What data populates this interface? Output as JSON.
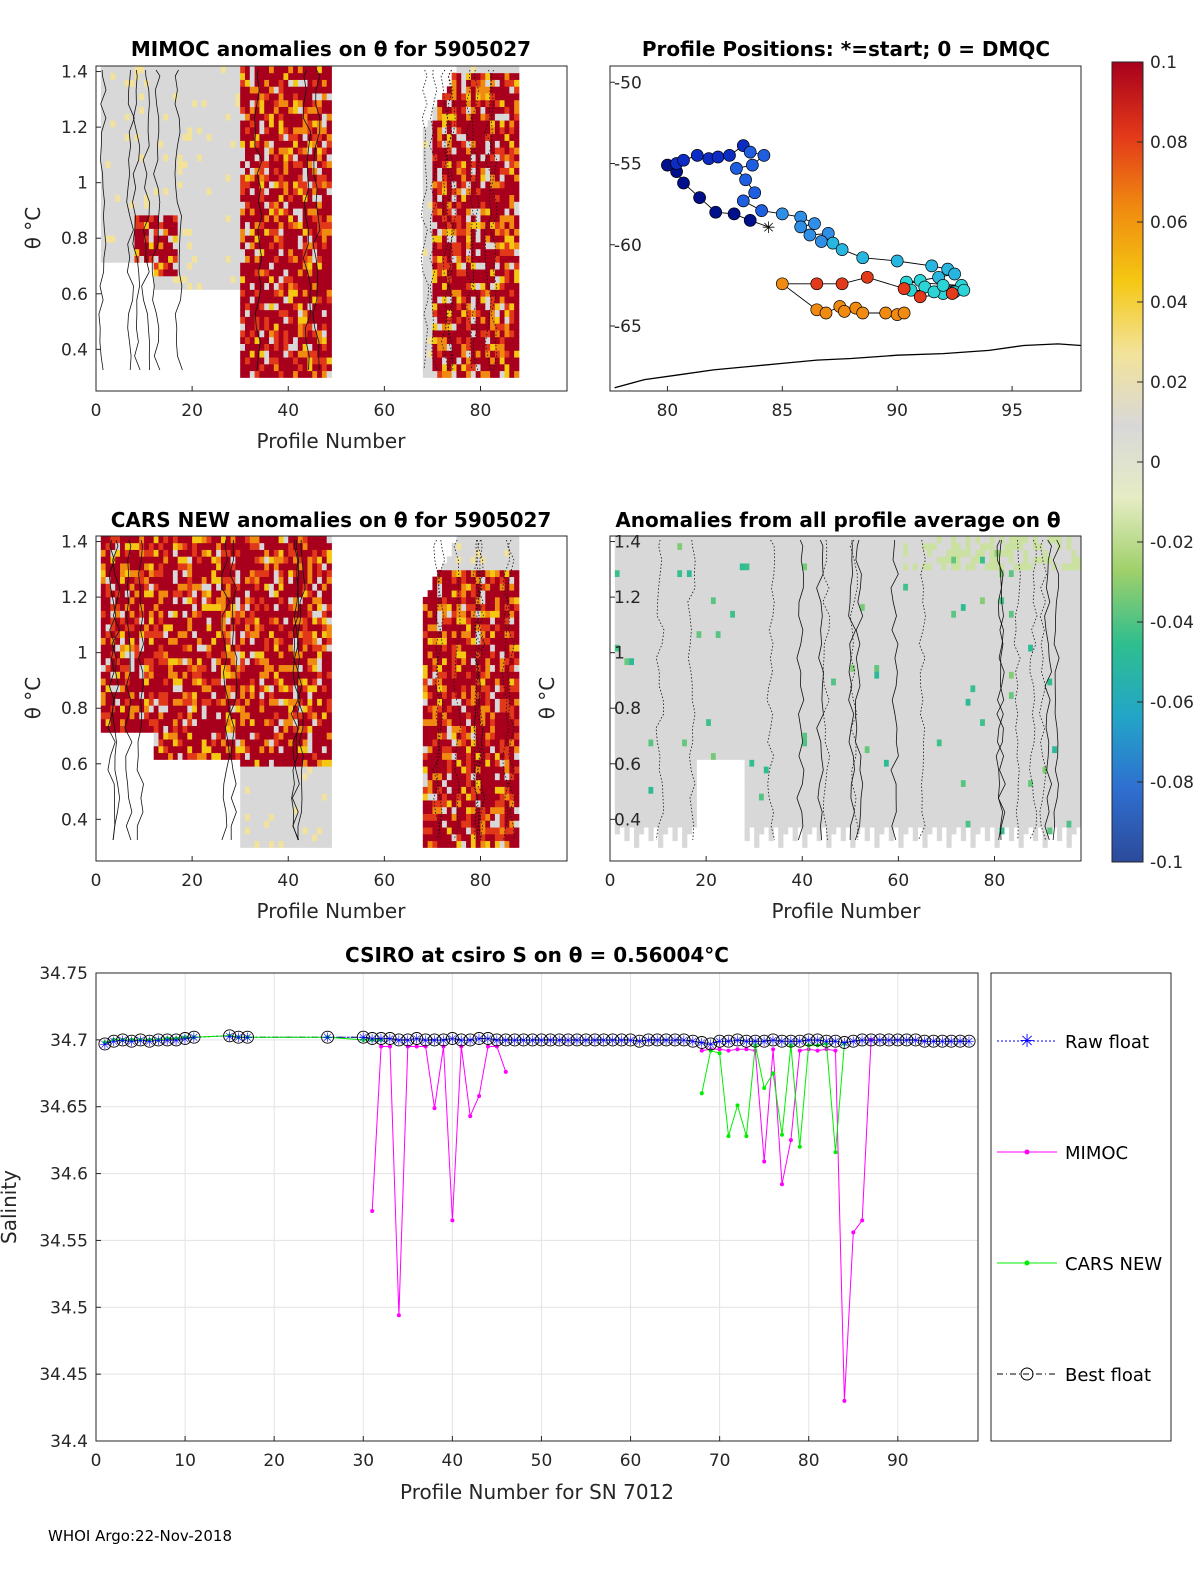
{
  "footer": {
    "text": "WHOI Argo:22-Nov-2018"
  },
  "colormap": {
    "stops": [
      "#2c4a9a",
      "#2f6fd0",
      "#23a5c8",
      "#2fbe8e",
      "#9fd06a",
      "#e6ecc4",
      "#d8d8d8",
      "#f3e39a",
      "#f4c712",
      "#f08a10",
      "#e2381a",
      "#a8001c"
    ],
    "na_color": "#d8d8d8"
  },
  "chart_data": [
    {
      "id": "mimoc_anomaly",
      "type": "heatmap",
      "title": "MIMOC anomalies on θ  for 5905027",
      "xlabel": "Profile Number",
      "ylabel": "θ °C",
      "xlim": [
        0,
        98
      ],
      "ylim": [
        0.25,
        1.42
      ],
      "xticks": [
        "0",
        "20",
        "40",
        "60",
        "80"
      ],
      "xtick_values": [
        0,
        20,
        40,
        60,
        80
      ],
      "yticks": [
        "0.4",
        "0.6",
        "0.8",
        "1",
        "1.2",
        "1.4"
      ],
      "ytick_values": [
        0.4,
        0.6,
        0.8,
        1.0,
        1.2,
        1.4
      ],
      "data_profiles": [
        [
          1,
          48
        ],
        [
          68,
          87
        ]
      ],
      "hot_blobs": [
        [
          8,
          16,
          0.66,
          0.88
        ],
        [
          30,
          48,
          0.3,
          1.42
        ],
        [
          70,
          87,
          0.3,
          1.4
        ]
      ]
    },
    {
      "id": "profile_positions",
      "type": "scatter",
      "title": "Profile Positions: *=start; 0 = DMQC",
      "xlim": [
        77.5,
        98
      ],
      "ylim": [
        -69,
        -49
      ],
      "xticks": [
        "80",
        "85",
        "90",
        "95"
      ],
      "xtick_values": [
        80,
        85,
        90,
        95
      ],
      "yticks": [
        "-50",
        "-55",
        "-60",
        "-65"
      ],
      "ytick_values": [
        -50,
        -55,
        -60,
        -65
      ],
      "start": [
        84.4,
        -58.9
      ],
      "track": [
        [
          84.4,
          -58.9
        ],
        [
          83.6,
          -58.5
        ],
        [
          82.9,
          -58.1
        ],
        [
          82.1,
          -58.0
        ],
        [
          81.4,
          -57.1
        ],
        [
          80.7,
          -56.2
        ],
        [
          80.4,
          -55.5
        ],
        [
          80.0,
          -55.1
        ],
        [
          80.4,
          -55.0
        ],
        [
          80.7,
          -54.8
        ],
        [
          81.3,
          -54.5
        ],
        [
          81.8,
          -54.7
        ],
        [
          82.2,
          -54.6
        ],
        [
          82.7,
          -54.5
        ],
        [
          83.3,
          -53.9
        ],
        [
          83.6,
          -54.3
        ],
        [
          84.2,
          -54.5
        ],
        [
          83.7,
          -55.1
        ],
        [
          83.0,
          -55.3
        ],
        [
          83.4,
          -56.0
        ],
        [
          83.8,
          -56.8
        ],
        [
          83.3,
          -57.3
        ],
        [
          84.1,
          -57.9
        ],
        [
          85.0,
          -58.1
        ],
        [
          85.8,
          -58.3
        ],
        [
          86.4,
          -58.7
        ],
        [
          85.8,
          -58.9
        ],
        [
          86.2,
          -59.4
        ],
        [
          87.0,
          -59.3
        ],
        [
          86.7,
          -59.8
        ],
        [
          87.2,
          -59.9
        ],
        [
          87.6,
          -60.3
        ],
        [
          88.5,
          -60.8
        ],
        [
          90.0,
          -61.0
        ],
        [
          91.5,
          -61.3
        ],
        [
          92.2,
          -61.5
        ],
        [
          92.5,
          -61.8
        ],
        [
          91.8,
          -62.0
        ],
        [
          91.0,
          -62.2
        ],
        [
          90.4,
          -62.3
        ],
        [
          92.8,
          -62.5
        ],
        [
          91.2,
          -62.6
        ],
        [
          92.5,
          -62.9
        ],
        [
          90.6,
          -62.8
        ],
        [
          92.0,
          -63.0
        ],
        [
          91.6,
          -62.9
        ],
        [
          92.0,
          -62.5
        ],
        [
          92.9,
          -62.8
        ],
        [
          92.4,
          -63.0
        ],
        [
          91.0,
          -63.2
        ],
        [
          90.3,
          -62.7
        ],
        [
          88.7,
          -62.0
        ],
        [
          87.6,
          -62.4
        ],
        [
          86.5,
          -62.4
        ],
        [
          85.0,
          -62.4
        ],
        [
          86.5,
          -64.0
        ],
        [
          86.9,
          -64.2
        ],
        [
          87.5,
          -63.8
        ],
        [
          87.7,
          -64.1
        ],
        [
          88.2,
          -63.9
        ],
        [
          88.5,
          -64.2
        ],
        [
          89.5,
          -64.2
        ],
        [
          90.0,
          -64.3
        ],
        [
          90.3,
          -64.2
        ]
      ],
      "coast": [
        [
          77.7,
          -68.8
        ],
        [
          79.0,
          -68.3
        ],
        [
          80.5,
          -68.0
        ],
        [
          82.0,
          -67.7
        ],
        [
          83.5,
          -67.5
        ],
        [
          85.0,
          -67.3
        ],
        [
          86.5,
          -67.1
        ],
        [
          88.0,
          -67.0
        ],
        [
          90.0,
          -66.8
        ],
        [
          92.0,
          -66.7
        ],
        [
          94.0,
          -66.5
        ],
        [
          95.5,
          -66.2
        ],
        [
          97.0,
          -66.1
        ],
        [
          98.0,
          -66.2
        ]
      ]
    },
    {
      "id": "cars_anomaly",
      "type": "heatmap",
      "title": "CARS NEW anomalies on θ for 5905027",
      "xlabel": "Profile Number",
      "ylabel": "θ °C",
      "xlim": [
        0,
        98
      ],
      "ylim": [
        0.25,
        1.42
      ],
      "xticks": [
        "0",
        "20",
        "40",
        "60",
        "80"
      ],
      "xtick_values": [
        0,
        20,
        40,
        60,
        80
      ],
      "yticks": [
        "0.4",
        "0.6",
        "0.8",
        "1",
        "1.2",
        "1.4"
      ],
      "ytick_values": [
        0.4,
        0.6,
        0.8,
        1.0,
        1.2,
        1.4
      ],
      "data_profiles": [
        [
          1,
          48
        ],
        [
          68,
          87
        ]
      ],
      "hot_blobs": [
        [
          1,
          48,
          0.6,
          1.42
        ],
        [
          16,
          24,
          0.64,
          0.8
        ],
        [
          67,
          87,
          0.26,
          1.3
        ]
      ]
    },
    {
      "id": "all_profile_anomaly",
      "type": "heatmap",
      "title": "Anomalies from all profile average on θ",
      "xlabel": "Profile Number",
      "ylabel": "θ °C",
      "xlim": [
        0,
        98
      ],
      "ylim": [
        0.25,
        1.42
      ],
      "xticks": [
        "0",
        "20",
        "40",
        "60",
        "80"
      ],
      "xtick_values": [
        0,
        20,
        40,
        60,
        80
      ],
      "yticks": [
        "0.4",
        "0.6",
        "0.8",
        "1",
        "1.2",
        "1.4"
      ],
      "ytick_values": [
        0.4,
        0.6,
        0.8,
        1.0,
        1.2,
        1.4
      ],
      "data_profiles": [
        [
          1,
          97
        ]
      ]
    },
    {
      "id": "colorbar",
      "type": "heatmap",
      "range": [
        -0.1,
        0.1
      ],
      "ticks": [
        "0.1",
        "0.08",
        "0.06",
        "0.04",
        "0.02",
        "0",
        "-0.02",
        "-0.04",
        "-0.06",
        "-0.08",
        "-0.1"
      ],
      "tick_values": [
        0.1,
        0.08,
        0.06,
        0.04,
        0.02,
        0,
        -0.02,
        -0.04,
        -0.06,
        -0.08,
        -0.1
      ]
    },
    {
      "id": "salinity",
      "type": "line",
      "title": "CSIRO at csiro S on θ = 0.56004°C",
      "xlabel": "Profile Number for SN 7012",
      "ylabel": "Salinity",
      "xlim": [
        0,
        99
      ],
      "ylim": [
        34.4,
        34.75
      ],
      "xticks": [
        "0",
        "10",
        "20",
        "30",
        "40",
        "50",
        "60",
        "70",
        "80",
        "90"
      ],
      "xtick_values": [
        0,
        10,
        20,
        30,
        40,
        50,
        60,
        70,
        80,
        90
      ],
      "yticks": [
        "34.75",
        "34.7",
        "34.65",
        "34.6",
        "34.55",
        "34.5",
        "34.45",
        "34.4"
      ],
      "ytick_values": [
        34.75,
        34.7,
        34.65,
        34.6,
        34.55,
        34.5,
        34.45,
        34.4
      ],
      "grid": true,
      "legend": [
        "Raw float",
        "MIMOC",
        "CARS NEW",
        "Best float"
      ],
      "series": [
        {
          "name": "Raw float",
          "x": [
            1,
            2,
            3,
            4,
            5,
            6,
            7,
            8,
            9,
            10,
            11,
            15,
            16,
            17,
            26,
            30,
            31,
            32,
            33,
            34,
            35,
            36,
            37,
            38,
            39,
            40,
            41,
            42,
            43,
            44,
            45,
            46,
            47,
            48,
            49,
            50,
            51,
            52,
            53,
            54,
            55,
            56,
            57,
            58,
            59,
            60,
            61,
            62,
            63,
            64,
            65,
            66,
            67,
            68,
            69,
            70,
            71,
            72,
            73,
            74,
            75,
            76,
            77,
            78,
            79,
            80,
            81,
            82,
            83,
            84,
            85,
            86,
            87,
            88,
            89,
            90,
            91,
            92,
            93,
            94,
            95,
            96,
            97,
            98
          ],
          "values": [
            34.697,
            34.699,
            34.7,
            34.699,
            34.7,
            34.699,
            34.7,
            34.7,
            34.7,
            34.701,
            34.702,
            34.703,
            34.702,
            34.702,
            34.702,
            34.702,
            34.701,
            34.701,
            34.701,
            34.7,
            34.7,
            34.701,
            34.7,
            34.7,
            34.7,
            34.701,
            34.7,
            34.7,
            34.701,
            34.701,
            34.7,
            34.7,
            34.7,
            34.7,
            34.7,
            34.7,
            34.7,
            34.7,
            34.7,
            34.7,
            34.7,
            34.7,
            34.7,
            34.7,
            34.7,
            34.7,
            34.699,
            34.7,
            34.7,
            34.7,
            34.7,
            34.7,
            34.699,
            34.698,
            34.697,
            34.699,
            34.699,
            34.7,
            34.699,
            34.699,
            34.699,
            34.7,
            34.699,
            34.699,
            34.699,
            34.7,
            34.7,
            34.699,
            34.699,
            34.698,
            34.699,
            34.7,
            34.7,
            34.7,
            34.7,
            34.7,
            34.7,
            34.7,
            34.699,
            34.699,
            34.699,
            34.699,
            34.699,
            34.699
          ]
        },
        {
          "name": "Best float",
          "x": [
            1,
            2,
            3,
            4,
            5,
            6,
            7,
            8,
            9,
            10,
            11,
            15,
            16,
            17,
            26,
            30,
            31,
            32,
            33,
            34,
            35,
            36,
            37,
            38,
            39,
            40,
            41,
            42,
            43,
            44,
            45,
            46,
            47,
            48,
            49,
            50,
            51,
            52,
            53,
            54,
            55,
            56,
            57,
            58,
            59,
            60,
            61,
            62,
            63,
            64,
            65,
            66,
            67,
            68,
            69,
            70,
            71,
            72,
            73,
            74,
            75,
            76,
            77,
            78,
            79,
            80,
            81,
            82,
            83,
            84,
            85,
            86,
            87,
            88,
            89,
            90,
            91,
            92,
            93,
            94,
            95,
            96,
            97,
            98
          ],
          "values": [
            34.697,
            34.699,
            34.7,
            34.699,
            34.7,
            34.699,
            34.7,
            34.7,
            34.7,
            34.701,
            34.702,
            34.703,
            34.702,
            34.702,
            34.702,
            34.702,
            34.701,
            34.701,
            34.701,
            34.7,
            34.7,
            34.701,
            34.7,
            34.7,
            34.7,
            34.701,
            34.7,
            34.7,
            34.701,
            34.701,
            34.7,
            34.7,
            34.7,
            34.7,
            34.7,
            34.7,
            34.7,
            34.7,
            34.7,
            34.7,
            34.7,
            34.7,
            34.7,
            34.7,
            34.7,
            34.7,
            34.699,
            34.7,
            34.7,
            34.7,
            34.7,
            34.7,
            34.699,
            34.698,
            34.697,
            34.699,
            34.699,
            34.7,
            34.699,
            34.699,
            34.699,
            34.7,
            34.699,
            34.699,
            34.699,
            34.7,
            34.7,
            34.699,
            34.699,
            34.698,
            34.699,
            34.7,
            34.7,
            34.7,
            34.7,
            34.7,
            34.7,
            34.7,
            34.699,
            34.699,
            34.699,
            34.699,
            34.699,
            34.699
          ]
        },
        {
          "name": "MIMOC",
          "segments": [
            {
              "x": [
                31,
                32,
                33,
                34,
                35,
                36,
                37,
                38,
                39,
                40,
                41,
                42,
                43,
                44,
                45,
                46
              ],
              "values": [
                34.572,
                34.695,
                34.695,
                34.494,
                34.695,
                34.695,
                34.695,
                34.649,
                34.695,
                34.565,
                34.695,
                34.643,
                34.658,
                34.695,
                34.695,
                34.676
              ]
            },
            {
              "x": [
                68,
                69,
                70,
                71,
                72,
                73,
                74,
                75,
                76,
                77,
                78,
                79,
                80,
                81,
                82,
                83,
                84,
                85,
                86,
                87
              ],
              "values": [
                34.692,
                34.693,
                34.693,
                34.692,
                34.693,
                34.693,
                34.692,
                34.609,
                34.693,
                34.592,
                34.625,
                34.692,
                34.693,
                34.692,
                34.693,
                34.692,
                34.43,
                34.556,
                34.565,
                34.7
              ]
            }
          ]
        },
        {
          "name": "CARS NEW",
          "segments": [
            {
              "x": [
                1,
                2,
                3,
                4,
                5,
                6,
                7,
                8,
                9,
                10,
                11,
                15,
                16,
                17,
                26,
                30,
                31,
                32
              ],
              "values": [
                34.698,
                34.7,
                34.7,
                34.7,
                34.7,
                34.7,
                34.7,
                34.701,
                34.701,
                34.702,
                34.702,
                34.703,
                34.702,
                34.702,
                34.702,
                34.7,
                34.7,
                34.7
              ]
            },
            {
              "x": [
                68,
                69,
                70,
                71,
                72,
                73,
                74,
                75,
                76,
                77,
                78,
                79,
                80,
                81,
                82,
                83,
                84
              ],
              "values": [
                34.66,
                34.692,
                34.69,
                34.628,
                34.651,
                34.628,
                34.696,
                34.664,
                34.675,
                34.629,
                34.696,
                34.62,
                34.696,
                34.696,
                34.697,
                34.616,
                34.697
              ]
            }
          ]
        }
      ]
    }
  ]
}
